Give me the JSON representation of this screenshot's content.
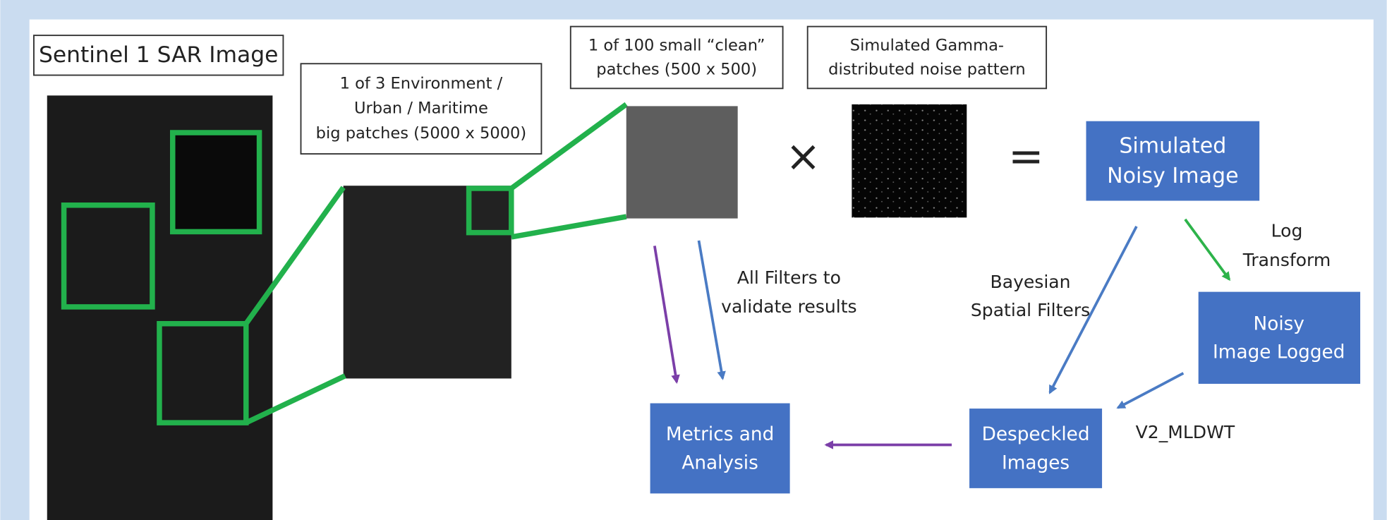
{
  "source_label": "Sentinel 1 SAR Image",
  "big_patch_label": [
    "1 of 3 Environment /",
    "Urban / Maritime",
    "big patches (5000 x 5000)"
  ],
  "small_patch_label": [
    "1 of 100 small “clean”",
    "patches (500 x 500)"
  ],
  "noise_label": [
    "Simulated Gamma-",
    "distributed noise pattern"
  ],
  "operators": {
    "multiply": "×",
    "equals": "="
  },
  "nodes": [
    {
      "label": [
        "Simulated",
        "Noisy Image"
      ]
    },
    {
      "label": [
        "Noisy",
        "Image Logged"
      ]
    },
    {
      "label": [
        "Despeckled",
        "Images"
      ]
    },
    {
      "label": [
        "Metrics and",
        "Analysis"
      ]
    }
  ],
  "edges": [
    {
      "label": [
        "Log",
        "Transform"
      ]
    },
    {
      "label": [
        "V2_MLDWT"
      ]
    },
    {
      "label": [
        "Bayesian",
        "Spatial Filters"
      ]
    },
    {
      "label": [
        "All Filters to",
        "validate results"
      ]
    }
  ]
}
